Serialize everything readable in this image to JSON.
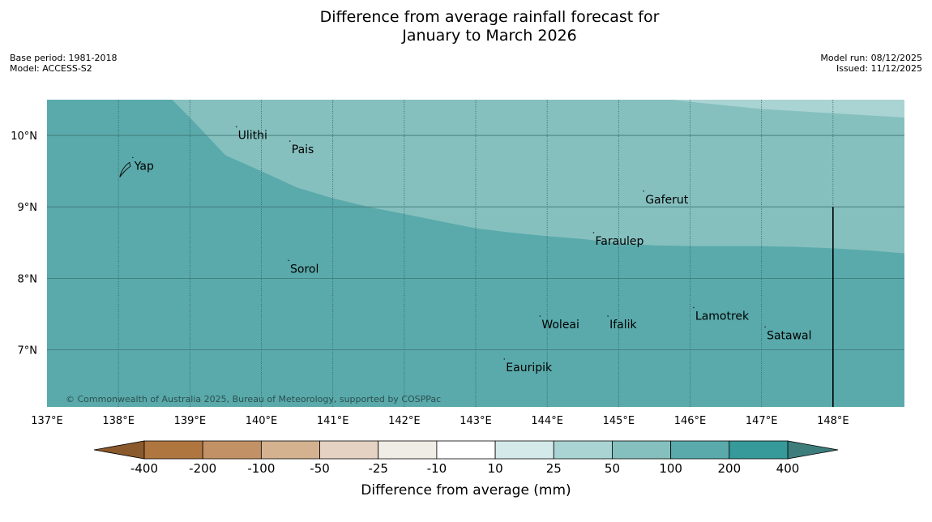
{
  "title_line1": "Difference from average rainfall forecast for",
  "title_line2": "January to March 2026",
  "meta": {
    "base_period": "Base period: 1981-2018",
    "model": "Model: ACCESS-S2",
    "model_run": "Model run: 08/12/2025",
    "issued": "Issued: 11/12/2025"
  },
  "map": {
    "lon_range": [
      137,
      149
    ],
    "lat_range": [
      6.2,
      10.5
    ],
    "lon_ticks": [
      {
        "value": 137,
        "label": "137°E"
      },
      {
        "value": 138,
        "label": "138°E"
      },
      {
        "value": 139,
        "label": "139°E"
      },
      {
        "value": 140,
        "label": "140°E"
      },
      {
        "value": 141,
        "label": "141°E"
      },
      {
        "value": 142,
        "label": "142°E"
      },
      {
        "value": 143,
        "label": "143°E"
      },
      {
        "value": 144,
        "label": "144°E"
      },
      {
        "value": 145,
        "label": "145°E"
      },
      {
        "value": 146,
        "label": "146°E"
      },
      {
        "value": 147,
        "label": "147°E"
      },
      {
        "value": 148,
        "label": "148°E"
      }
    ],
    "lat_ticks": [
      {
        "value": 10,
        "label": "10°N"
      },
      {
        "value": 9,
        "label": "9°N"
      },
      {
        "value": 8,
        "label": "8°N"
      },
      {
        "value": 7,
        "label": "7°N"
      }
    ],
    "places": [
      {
        "name": "Yap",
        "lon": 138.2,
        "lat": 9.52
      },
      {
        "name": "Ulithi",
        "lon": 139.65,
        "lat": 9.95
      },
      {
        "name": "Pais",
        "lon": 140.4,
        "lat": 9.75
      },
      {
        "name": "Gaferut",
        "lon": 145.35,
        "lat": 9.05
      },
      {
        "name": "Faraulep",
        "lon": 144.65,
        "lat": 8.47
      },
      {
        "name": "Sorol",
        "lon": 140.38,
        "lat": 8.08
      },
      {
        "name": "Woleai",
        "lon": 143.9,
        "lat": 7.3
      },
      {
        "name": "Ifalik",
        "lon": 144.85,
        "lat": 7.3
      },
      {
        "name": "Lamotrek",
        "lon": 146.05,
        "lat": 7.42
      },
      {
        "name": "Satawal",
        "lon": 147.05,
        "lat": 7.15
      },
      {
        "name": "Eauripik",
        "lon": 143.4,
        "lat": 6.7
      }
    ],
    "boundary_line": {
      "lon": 148,
      "lat_top": 9,
      "lat_bottom": 6.2
    },
    "copyright": "© Commonwealth of Australia 2025, Bureau of Meteorology, supported by COSPPac",
    "regions": {
      "band_100_200_color": "#5aaaab",
      "band_50_100_color": "#85c0bf",
      "band_25_50_color": "#a9d4d3",
      "boundary_50_100": [
        [
          138.75,
          10.5
        ],
        [
          139.0,
          10.25
        ],
        [
          139.5,
          9.72
        ],
        [
          140.0,
          9.5
        ],
        [
          140.5,
          9.27
        ],
        [
          141.0,
          9.12
        ],
        [
          141.5,
          9.0
        ],
        [
          142.0,
          8.9
        ],
        [
          142.5,
          8.8
        ],
        [
          143.0,
          8.7
        ],
        [
          143.5,
          8.64
        ],
        [
          144.0,
          8.59
        ],
        [
          144.5,
          8.55
        ],
        [
          145.0,
          8.49
        ],
        [
          145.5,
          8.46
        ],
        [
          146.0,
          8.45
        ],
        [
          146.5,
          8.45
        ],
        [
          147.0,
          8.45
        ],
        [
          147.5,
          8.44
        ],
        [
          148.0,
          8.42
        ],
        [
          148.5,
          8.39
        ],
        [
          149.0,
          8.35
        ]
      ],
      "boundary_25_50": [
        [
          145.75,
          10.5
        ],
        [
          146.0,
          10.47
        ],
        [
          146.5,
          10.42
        ],
        [
          147.0,
          10.37
        ],
        [
          147.5,
          10.34
        ],
        [
          148.0,
          10.31
        ],
        [
          148.5,
          10.28
        ],
        [
          149.0,
          10.25
        ]
      ]
    }
  },
  "colorbar": {
    "label": "Difference from average (mm)",
    "low_arrow_color": "#8a5a2c",
    "high_arrow_color": "#3d7e7d",
    "colors": [
      "#b0763f",
      "#c29266",
      "#d4b290",
      "#e5d2c2",
      "#f0ece6",
      "#ffffff",
      "#d4eaea",
      "#a9d4d3",
      "#85c0bf",
      "#5aaaab",
      "#359a99"
    ],
    "ticks": [
      "-400",
      "-200",
      "-100",
      "-50",
      "-25",
      "-10",
      "10",
      "25",
      "50",
      "100",
      "200",
      "400"
    ]
  }
}
